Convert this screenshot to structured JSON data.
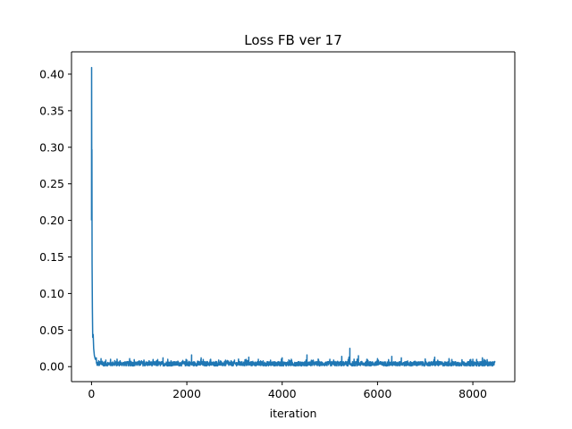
{
  "chart_data": {
    "type": "line",
    "title": "Loss FB ver 17",
    "xlabel": "iteration",
    "ylabel": "",
    "xlim": [
      -420,
      8880
    ],
    "ylim": [
      -0.0205,
      0.4305
    ],
    "xticks": [
      0,
      2000,
      4000,
      6000,
      8000
    ],
    "xtick_labels": [
      "0",
      "2000",
      "4000",
      "6000",
      "8000"
    ],
    "yticks": [
      0.0,
      0.05,
      0.1,
      0.15,
      0.2,
      0.25,
      0.3,
      0.35,
      0.4
    ],
    "ytick_labels": [
      "0.00",
      "0.05",
      "0.10",
      "0.15",
      "0.20",
      "0.25",
      "0.30",
      "0.35",
      "0.40"
    ],
    "grid": false,
    "series": [
      {
        "color": "#1f77b4",
        "n_points": 8460,
        "baseline": 0.003,
        "noise_band": 0.006,
        "x": [
          0,
          2,
          5,
          8,
          12,
          18,
          25,
          35,
          45,
          60,
          80,
          100,
          150,
          200,
          300,
          400,
          600,
          800,
          1000,
          1500,
          1600,
          2000,
          2100,
          2300,
          2500,
          3000,
          3300,
          3500,
          4000,
          4500,
          4520,
          5000,
          5250,
          5400,
          5420,
          5600,
          6000,
          6300,
          6500,
          7000,
          7200,
          7500,
          8000,
          8200,
          8460
        ],
        "y": [
          0.2,
          0.409,
          0.27,
          0.297,
          0.14,
          0.08,
          0.04,
          0.044,
          0.025,
          0.015,
          0.01,
          0.012,
          0.008,
          0.011,
          0.009,
          0.01,
          0.008,
          0.011,
          0.008,
          0.012,
          0.01,
          0.009,
          0.016,
          0.012,
          0.01,
          0.009,
          0.013,
          0.01,
          0.012,
          0.009,
          0.016,
          0.01,
          0.014,
          0.013,
          0.025,
          0.015,
          0.011,
          0.014,
          0.012,
          0.01,
          0.013,
          0.011,
          0.01,
          0.012,
          0.007
        ]
      }
    ]
  }
}
